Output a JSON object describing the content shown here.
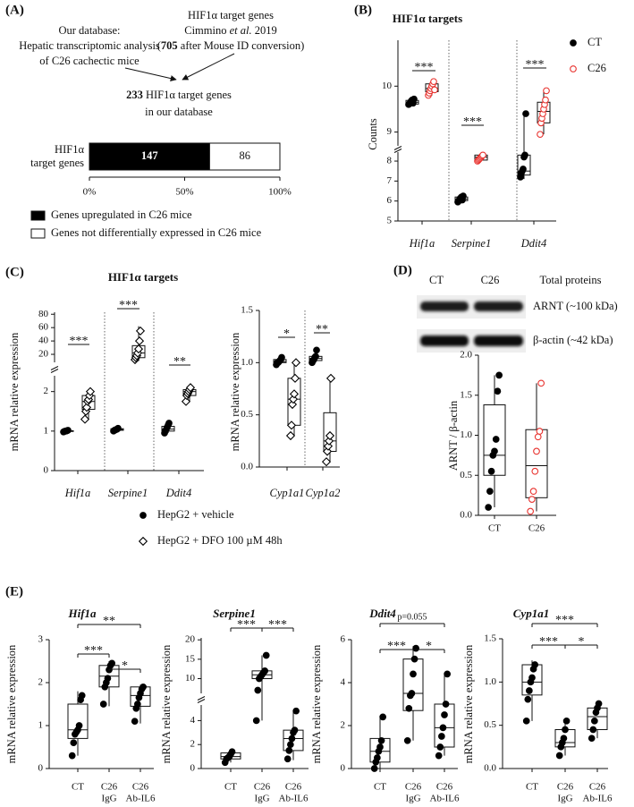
{
  "panel_labels": [
    "(A)",
    "(B)",
    "(C)",
    "(D)",
    "(E)"
  ],
  "panel_a": {
    "left": [
      "Our database:",
      "Hepatic transcriptomic analysis",
      "of C26 cachectic mice"
    ],
    "right": {
      "line1": "HIF1α target genes",
      "line2": [
        "Cimmino ",
        "et al.",
        " 2019"
      ],
      "line3": [
        "(",
        "705",
        " after Mouse ID conversion)"
      ]
    },
    "result": {
      "line1": [
        "233",
        " HIF1α target genes"
      ],
      "line2": "in our database"
    }
  },
  "panel_d_blot": {
    "lanes": [
      "CT",
      "C26"
    ],
    "header": "Total proteins",
    "bands": [
      "ARNT (~100 kDa)",
      "β-actin (~42 kDa)"
    ]
  },
  "chart_data": [
    {
      "type": "bar",
      "orientation": "horizontal",
      "stacked": true,
      "ylabel": [
        "HIF1α",
        "target genes"
      ],
      "xlim": [
        0,
        233
      ],
      "xticks": [
        {
          "value": 0,
          "label": "0%"
        },
        {
          "value": 116.5,
          "label": "50%"
        },
        {
          "value": 233,
          "label": "100%"
        }
      ],
      "series": [
        {
          "name": "Genes upregulated in C26 mice",
          "color": "#000000",
          "values": [
            147
          ]
        },
        {
          "name": "Genes not differentially expressed in C26 mice",
          "color": "#ffffff",
          "values": [
            86
          ]
        }
      ]
    },
    {
      "type": "box",
      "title": "HIF1α targets",
      "ylabel": "Counts",
      "categories": [
        "Hif1a",
        "Serpine1",
        "Ddit4"
      ],
      "segments": [
        {
          "ylim": [
            5,
            8.45
          ],
          "yticks": [
            5,
            6,
            7,
            8
          ]
        },
        {
          "ylim": [
            8.7,
            11
          ],
          "yticks": [
            9,
            10
          ]
        }
      ],
      "significance": [
        "***",
        "***",
        "***"
      ],
      "series": [
        {
          "name": "CT",
          "color": "#000000",
          "marker": "circle",
          "filled": true,
          "groups": [
            {
              "points": [
                9.6,
                9.62,
                9.65,
                9.68,
                9.7,
                9.63,
                9.72
              ],
              "box": [
                9.58,
                9.61,
                9.65,
                9.69,
                9.73
              ]
            },
            {
              "points": [
                5.95,
                6.0,
                6.1,
                6.15,
                6.2,
                6.05,
                6.25
              ],
              "box": [
                5.95,
                6.02,
                6.1,
                6.2,
                6.3
              ]
            },
            {
              "points": [
                7.2,
                7.4,
                7.5,
                7.6,
                8.2,
                8.3,
                9.4
              ],
              "box": [
                7.1,
                7.3,
                7.5,
                8.3,
                9.4
              ]
            }
          ]
        },
        {
          "name": "C26",
          "color": "#e8322e",
          "marker": "circle",
          "filled": false,
          "groups": [
            {
              "points": [
                9.8,
                9.85,
                9.9,
                9.95,
                10.0,
                10.05,
                10.1,
                9.92
              ],
              "box": [
                9.8,
                9.88,
                9.95,
                10.05,
                10.15
              ]
            },
            {
              "points": [
                8.0,
                8.05,
                8.1,
                8.15,
                8.2,
                8.25,
                8.3
              ],
              "box": [
                8.0,
                8.05,
                8.2,
                8.3,
                8.35
              ]
            },
            {
              "points": [
                8.95,
                9.2,
                9.3,
                9.4,
                9.5,
                9.6,
                9.7,
                9.9
              ],
              "box": [
                8.95,
                9.2,
                9.45,
                9.65,
                9.9
              ]
            }
          ]
        }
      ]
    },
    {
      "type": "box",
      "title": "HIF1α targets",
      "ylabel": "mRNA relative expression",
      "categories": [
        "Hif1a",
        "Serpine1",
        "Ddit4"
      ],
      "segments": [
        {
          "ylim": [
            0,
            2.4
          ],
          "yticks": [
            0,
            1,
            2
          ]
        },
        {
          "ylim": [
            8,
            83
          ],
          "yticks": [
            20,
            40,
            60,
            80
          ]
        }
      ],
      "significance": [
        "***",
        "***",
        "**"
      ],
      "series": [
        {
          "name": "HepG2 + vehicle",
          "color": "#000000",
          "marker": "circle",
          "filled": true,
          "groups": [
            {
              "points": [
                0.98,
                0.99,
                1.0,
                1.0,
                1.01,
                1.02
              ],
              "box": [
                0.98,
                0.99,
                1.0,
                1.01,
                1.03
              ]
            },
            {
              "points": [
                1.0,
                1.02,
                1.03,
                1.04,
                1.05,
                1.07
              ],
              "box": [
                1.0,
                1.02,
                1.04,
                1.06,
                1.08
              ]
            },
            {
              "points": [
                0.95,
                1.0,
                1.05,
                1.1,
                1.15,
                1.2
              ],
              "box": [
                0.95,
                1.0,
                1.05,
                1.12,
                1.2
              ]
            }
          ]
        },
        {
          "name": "HepG2 + DFO 100 µM 48h",
          "color": "#000000",
          "marker": "diamond",
          "filled": false,
          "groups": [
            {
              "points": [
                1.3,
                1.5,
                1.6,
                1.75,
                1.8,
                1.9,
                2.0
              ],
              "box": [
                1.3,
                1.55,
                1.75,
                1.9,
                2.05
              ]
            },
            {
              "points": [
                12,
                15,
                18,
                22,
                28,
                40,
                55
              ],
              "box": [
                10,
                15,
                22,
                33,
                62
              ]
            },
            {
              "points": [
                1.75,
                1.9,
                1.95,
                2.0,
                2.05,
                2.1
              ],
              "box": [
                1.75,
                1.9,
                2.0,
                2.05,
                2.15
              ]
            }
          ]
        }
      ]
    },
    {
      "type": "box",
      "ylabel": "mRNA relative expression",
      "categories": [
        "Cyp1a1",
        "Cyp1a2"
      ],
      "ylim": [
        0,
        1.5
      ],
      "yticks": [
        {
          "value": 0,
          "label": "0.0"
        },
        {
          "value": 0.5,
          "label": "0.5"
        },
        {
          "value": 1,
          "label": "1.0"
        },
        {
          "value": 1.5,
          "label": "1.5"
        }
      ],
      "significance": [
        "*",
        "**"
      ],
      "series": [
        {
          "color": "#000000",
          "marker": "circle",
          "filled": true,
          "groups": [
            {
              "points": [
                0.98,
                1.0,
                1.0,
                1.01,
                1.02,
                1.03,
                1.05
              ],
              "box": [
                0.98,
                1.0,
                1.01,
                1.03,
                1.05
              ]
            },
            {
              "points": [
                1.0,
                1.02,
                1.03,
                1.05,
                1.06,
                1.12
              ],
              "box": [
                1.0,
                1.02,
                1.04,
                1.06,
                1.12
              ]
            }
          ]
        },
        {
          "color": "#000000",
          "marker": "diamond",
          "filled": false,
          "groups": [
            {
              "points": [
                0.3,
                0.4,
                0.6,
                0.65,
                0.7,
                0.85,
                1.0
              ],
              "box": [
                0.3,
                0.4,
                0.65,
                0.85,
                1.0
              ]
            },
            {
              "points": [
                0.05,
                0.15,
                0.2,
                0.25,
                0.3,
                0.85
              ],
              "box": [
                0.05,
                0.15,
                0.25,
                0.52,
                0.85
              ]
            }
          ]
        }
      ]
    },
    {
      "type": "box",
      "ylabel": "ARNT / β-actin",
      "categories": [
        "CT",
        "C26"
      ],
      "ylim": [
        0,
        2
      ],
      "yticks": [
        {
          "value": 0,
          "label": "0.0"
        },
        {
          "value": 0.5,
          "label": "0.5"
        },
        {
          "value": 1,
          "label": "1.0"
        },
        {
          "value": 1.5,
          "label": "1.5"
        },
        {
          "value": 2,
          "label": "2.0"
        }
      ],
      "series": [
        {
          "color": "#000000",
          "marker": "circle",
          "filled": true,
          "groups": [
            {
              "points": [
                0.1,
                0.3,
                0.55,
                0.75,
                0.8,
                0.95,
                1.55,
                1.75
              ],
              "box": [
                0.1,
                0.5,
                0.75,
                1.38,
                1.75
              ]
            },
            null
          ]
        },
        {
          "color": "#e8322e",
          "marker": "circle",
          "filled": false,
          "groups": [
            null,
            {
              "points": [
                0.05,
                0.2,
                0.3,
                0.55,
                0.8,
                0.98,
                1.05,
                1.65
              ],
              "box": [
                0.05,
                0.22,
                0.62,
                1.07,
                1.65
              ]
            }
          ]
        }
      ]
    },
    {
      "type": "box",
      "title": "Hif1a",
      "ylabel": "mRNA relative expression",
      "categories": [
        [
          "CT"
        ],
        [
          "C26",
          "IgG"
        ],
        [
          "C26",
          "Ab-IL6"
        ]
      ],
      "ylim": [
        0,
        3
      ],
      "yticks": [
        0,
        1,
        2,
        3
      ],
      "significance": [
        "**",
        "***",
        "*"
      ],
      "series": [
        {
          "color": "#000000",
          "marker": "circle",
          "filled": true,
          "groups": [
            {
              "points": [
                0.3,
                0.6,
                0.8,
                0.85,
                0.9,
                1.0,
                1.6,
                1.7
              ],
              "box": [
                0.3,
                0.7,
                0.9,
                1.5,
                1.8
              ]
            },
            {
              "points": [
                1.5,
                1.9,
                2.0,
                2.1,
                2.3,
                2.4,
                2.45
              ],
              "box": [
                1.45,
                1.9,
                2.15,
                2.4,
                2.5
              ]
            },
            {
              "points": [
                1.1,
                1.4,
                1.5,
                1.65,
                1.75,
                1.85,
                1.9
              ],
              "box": [
                1.05,
                1.45,
                1.7,
                1.9,
                1.95
              ]
            }
          ]
        }
      ]
    },
    {
      "type": "box",
      "title": "Serpine1",
      "ylabel": "mRNA relative expression",
      "categories": [
        [
          "CT"
        ],
        [
          "C26",
          "IgG"
        ],
        [
          "C26",
          "Ab-IL6"
        ]
      ],
      "segments": [
        {
          "ylim": [
            0,
            5.3
          ],
          "yticks": [
            0,
            2,
            4
          ]
        },
        {
          "ylim": [
            6.2,
            20.5
          ],
          "yticks": [
            10,
            15,
            20
          ]
        }
      ],
      "significance": [
        "***",
        "***"
      ],
      "series": [
        {
          "color": "#000000",
          "marker": "circle",
          "filled": true,
          "groups": [
            {
              "points": [
                0.5,
                0.8,
                0.9,
                1.0,
                1.2,
                1.4
              ],
              "box": [
                0.5,
                0.8,
                1.0,
                1.3,
                1.5
              ]
            },
            {
              "points": [
                4,
                7,
                10,
                10.5,
                11,
                11.5,
                12,
                16
              ],
              "box": [
                4,
                10,
                11,
                12,
                16
              ]
            },
            {
              "points": [
                0.8,
                1.5,
                2,
                2.5,
                3,
                3.2,
                4.8
              ],
              "box": [
                0.7,
                1.5,
                2.5,
                3.2,
                4.8
              ]
            }
          ]
        }
      ]
    },
    {
      "type": "box",
      "title": "Ddit4",
      "ylabel": "mRNA relative expression",
      "categories": [
        [
          "CT"
        ],
        [
          "C26",
          "IgG"
        ],
        [
          "C26",
          "Ab-IL6"
        ]
      ],
      "ylim": [
        0,
        6
      ],
      "yticks": [
        0,
        2,
        4,
        6
      ],
      "significance": [
        "p=0.055",
        "***",
        "*"
      ],
      "series": [
        {
          "color": "#000000",
          "marker": "circle",
          "filled": true,
          "groups": [
            {
              "points": [
                0,
                0.3,
                0.5,
                0.8,
                1.0,
                1.3,
                2.4
              ],
              "box": [
                0,
                0.3,
                0.8,
                1.4,
                2.4
              ]
            },
            {
              "points": [
                1.3,
                2.8,
                3.4,
                3.5,
                4.4,
                5.1,
                5.6
              ],
              "box": [
                1.3,
                2.7,
                3.5,
                5.1,
                5.7
              ]
            },
            {
              "points": [
                0.6,
                1.0,
                1.5,
                1.9,
                2.5,
                3.0,
                4.4
              ],
              "box": [
                0.6,
                1.0,
                1.9,
                3.0,
                4.4
              ]
            }
          ]
        }
      ]
    },
    {
      "type": "box",
      "title": "Cyp1a1",
      "ylabel": "mRNA relative expression",
      "categories": [
        [
          "CT"
        ],
        [
          "C26",
          "IgG"
        ],
        [
          "C26",
          "Ab-IL6"
        ]
      ],
      "ylim": [
        0,
        1.5
      ],
      "yticks": [
        {
          "value": 0,
          "label": "0.0"
        },
        {
          "value": 0.5,
          "label": "0.5"
        },
        {
          "value": 1,
          "label": "1.0"
        },
        {
          "value": 1.5,
          "label": "1.5"
        }
      ],
      "significance": [
        "***",
        "***",
        "*"
      ],
      "series": [
        {
          "color": "#000000",
          "marker": "circle",
          "filled": true,
          "groups": [
            {
              "points": [
                0.55,
                0.8,
                0.9,
                1.0,
                1.05,
                1.15,
                1.2
              ],
              "box": [
                0.55,
                0.85,
                1.0,
                1.2,
                1.25
              ]
            },
            {
              "points": [
                0.15,
                0.25,
                0.3,
                0.35,
                0.45,
                0.55
              ],
              "box": [
                0.15,
                0.25,
                0.3,
                0.45,
                0.55
              ]
            },
            {
              "points": [
                0.35,
                0.45,
                0.55,
                0.65,
                0.7,
                0.75
              ],
              "box": [
                0.35,
                0.45,
                0.6,
                0.7,
                0.75
              ]
            }
          ]
        }
      ]
    }
  ]
}
